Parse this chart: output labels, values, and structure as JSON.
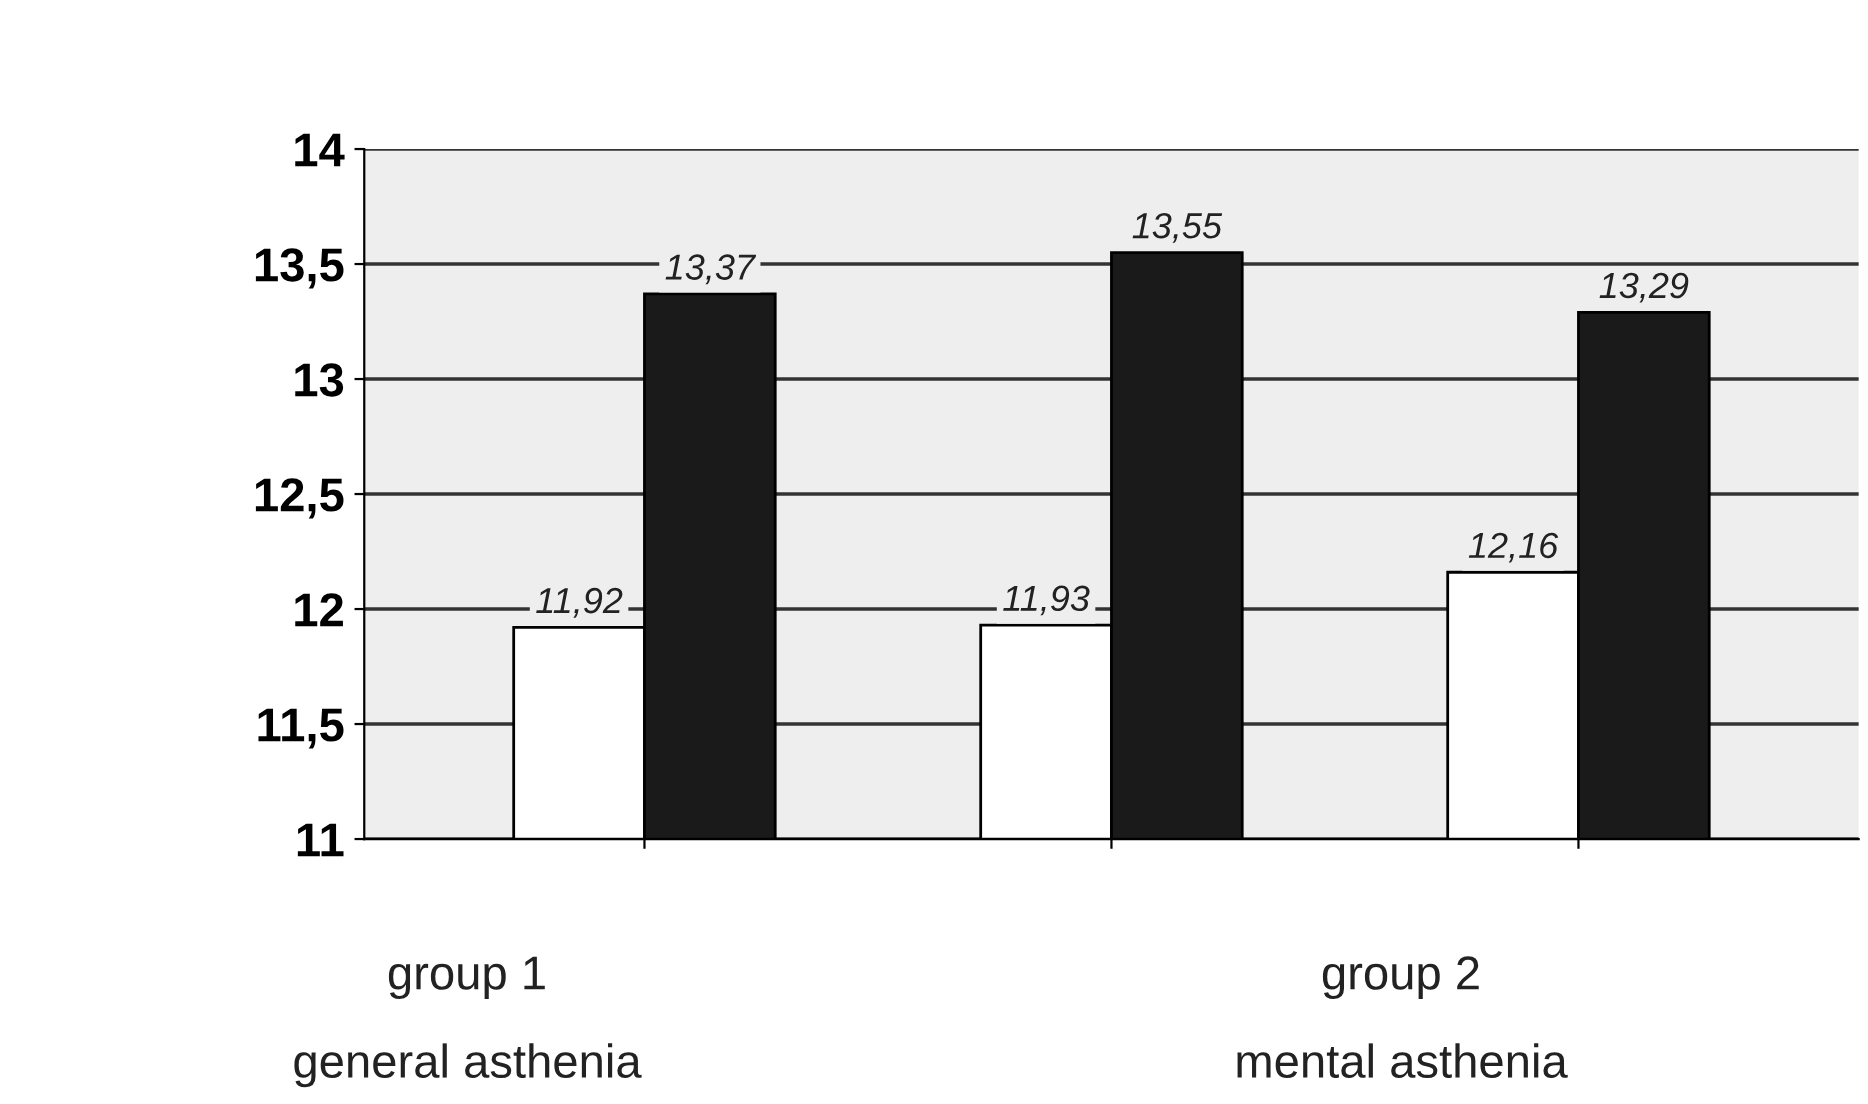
{
  "chart_data": {
    "type": "bar",
    "categories": [
      null,
      null,
      null
    ],
    "series": [
      {
        "color": "#ffffff",
        "values": [
          11.92,
          11.93,
          12.16
        ],
        "value_labels": [
          "11,92",
          "11,93",
          "12,16"
        ]
      },
      {
        "color": "#1a1a1a",
        "values": [
          13.37,
          13.55,
          13.29
        ],
        "value_labels": [
          "13,37",
          "13,55",
          "13,29"
        ]
      }
    ],
    "ylim": [
      11,
      14
    ],
    "yticks": [
      {
        "value": 11,
        "label": "11"
      },
      {
        "value": 11.5,
        "label": "11,5"
      },
      {
        "value": 12,
        "label": "12"
      },
      {
        "value": 12.5,
        "label": "12,5"
      },
      {
        "value": 13,
        "label": "13"
      },
      {
        "value": 13.5,
        "label": "13,5"
      },
      {
        "value": 14,
        "label": "14"
      }
    ],
    "grid": "y",
    "legend": false,
    "annotations": [
      "group 1",
      "group 2",
      "general asthenia",
      "mental asthenia"
    ]
  }
}
